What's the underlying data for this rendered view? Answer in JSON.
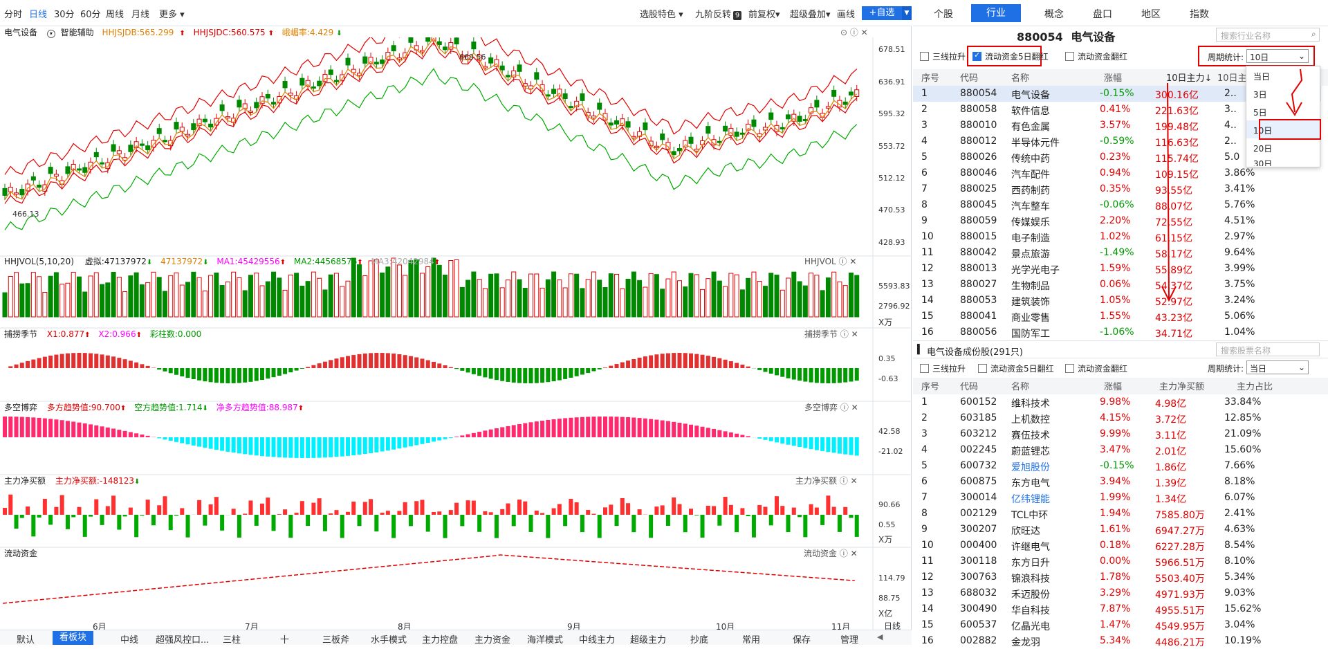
{
  "toolbar": {
    "left_items": [
      "分时",
      "日线",
      "30分",
      "60分",
      "周线",
      "月线",
      "更多 ▾"
    ],
    "right_items": [
      "选股特色 ▾",
      "九阶反转",
      "前复权▾",
      "超级叠加▾",
      "画线"
    ],
    "nine_badge": "9",
    "add_label": "+自选"
  },
  "main_chart": {
    "title": "电气设备",
    "assist": "智能辅助",
    "ind1": "HHJSJDB:565.299",
    "ind2": "HHJSJDC:560.575",
    "ind3": "峨嵋率:4.429",
    "y_labels": [
      "678.51",
      "636.91",
      "595.32",
      "553.72",
      "512.12",
      "470.53",
      "428.93"
    ],
    "high_label": "669.56",
    "low_label": "466.13"
  },
  "vol_panel": {
    "title": "HHJVOL(5,10,20)",
    "v1": "虚拟:47137972",
    "v2": "47137972",
    "ma1": "MA1:45429556",
    "ma2": "MA2:44568576",
    "ma3": "MA3:42042984",
    "right_title": "HHJVOL",
    "y_labels": [
      "5593.83",
      "2796.92"
    ],
    "unit": "X万"
  },
  "season_panel": {
    "title": "捕捞季节",
    "x1": "X1:0.877",
    "x2": "X2:0.966",
    "bars": "彩柱数:0.000",
    "right_title": "捕捞季节",
    "y_labels": [
      "0.35",
      "-0.63"
    ]
  },
  "game_panel": {
    "title": "多空博弈",
    "bull": "多方趋势值:90.700",
    "bear": "空方趋势值:1.714",
    "net": "净多方趋势值:88.987",
    "right_title": "多空博弈",
    "y_labels": [
      "42.58",
      "-21.02"
    ]
  },
  "netbuy_panel": {
    "title": "主力净买额",
    "value": "主力净买额:-148123",
    "right_title": "主力净买额",
    "y_labels": [
      "90.66",
      "0.55"
    ],
    "unit": "X万"
  },
  "flow_panel": {
    "title": "流动资金",
    "right_title": "流动资金",
    "y_labels": [
      "114.79",
      "88.75"
    ],
    "unit": "X亿"
  },
  "x_axis": {
    "months": [
      "6月",
      "7月",
      "8月",
      "9月",
      "10月",
      "11月"
    ],
    "right_label": "日线"
  },
  "bottom_tabs": [
    "默认",
    "看板块",
    "中线",
    "超强风控口...",
    "三柱",
    "十",
    "三板斧",
    "水手模式",
    "主力控盘",
    "主力资金",
    "海洋模式",
    "中线主力",
    "超级主力",
    "抄底",
    "常用",
    "保存",
    "管理"
  ],
  "right_tabs": [
    "个股",
    "行业",
    "概念",
    "盘口",
    "地区",
    "指数"
  ],
  "sector": {
    "code": "880054",
    "name": "电气设备",
    "search_placeholder": "搜索行业名称"
  },
  "filters": {
    "f1": "三线拉升",
    "f2": "流动资金5日翻红",
    "f3": "流动资金翻红",
    "period_label": "周期统计:",
    "period_value": "10日"
  },
  "dropdown": [
    "当日",
    "3日",
    "5日",
    "10日",
    "20日",
    "30日"
  ],
  "table1": {
    "headers": [
      "序号",
      "代码",
      "名称",
      "涨幅",
      "10日主力↓",
      "10日主力"
    ],
    "rows": [
      [
        "1",
        "880054",
        "电气设备",
        "-0.15%",
        "300.16亿",
        "2.."
      ],
      [
        "2",
        "880058",
        "软件信息",
        "0.41%",
        "221.63亿",
        "3.."
      ],
      [
        "3",
        "880010",
        "有色金属",
        "3.57%",
        "199.48亿",
        "4.."
      ],
      [
        "4",
        "880012",
        "半导体元件",
        "-0.59%",
        "116.63亿",
        "2.."
      ],
      [
        "5",
        "880026",
        "传统中药",
        "0.23%",
        "115.74亿",
        "5.0"
      ],
      [
        "6",
        "880046",
        "汽车配件",
        "0.94%",
        "109.15亿",
        "3.86%"
      ],
      [
        "7",
        "880025",
        "西药制药",
        "0.35%",
        "93.55亿",
        "3.41%"
      ],
      [
        "8",
        "880045",
        "汽车整车",
        "-0.06%",
        "88.07亿",
        "5.76%"
      ],
      [
        "9",
        "880059",
        "传媒娱乐",
        "2.20%",
        "72.55亿",
        "4.51%"
      ],
      [
        "10",
        "880015",
        "电子制造",
        "1.02%",
        "61.15亿",
        "2.97%"
      ],
      [
        "11",
        "880042",
        "景点旅游",
        "-1.49%",
        "58.17亿",
        "9.64%"
      ],
      [
        "12",
        "880013",
        "光学光电子",
        "1.59%",
        "55.89亿",
        "3.99%"
      ],
      [
        "13",
        "880027",
        "生物制品",
        "0.06%",
        "54.37亿",
        "3.75%"
      ],
      [
        "14",
        "880053",
        "建筑装饰",
        "1.05%",
        "52.97亿",
        "3.24%"
      ],
      [
        "15",
        "880041",
        "商业零售",
        "1.55%",
        "43.23亿",
        "5.06%"
      ],
      [
        "16",
        "880056",
        "国防军工",
        "-1.06%",
        "34.71亿",
        "1.04%"
      ]
    ]
  },
  "components": {
    "title": "电气设备成份股(291只)",
    "search_placeholder": "搜索股票名称",
    "period_value": "当日"
  },
  "table2": {
    "headers": [
      "序号",
      "代码",
      "名称",
      "涨幅",
      "主力净买额",
      "主力占比"
    ],
    "rows": [
      [
        "1",
        "600152",
        "维科技术",
        "9.98%",
        "4.98亿",
        "33.84%"
      ],
      [
        "2",
        "603185",
        "上机数控",
        "4.15%",
        "3.72亿",
        "12.85%"
      ],
      [
        "3",
        "603212",
        "赛伍技术",
        "9.99%",
        "3.11亿",
        "21.09%"
      ],
      [
        "4",
        "002245",
        "蔚蓝锂芯",
        "3.47%",
        "2.01亿",
        "15.60%"
      ],
      [
        "5",
        "600732",
        "爱旭股份",
        "-0.15%",
        "1.86亿",
        "7.66%"
      ],
      [
        "6",
        "600875",
        "东方电气",
        "3.94%",
        "1.39亿",
        "8.18%"
      ],
      [
        "7",
        "300014",
        "亿纬锂能",
        "1.99%",
        "1.34亿",
        "6.07%"
      ],
      [
        "8",
        "002129",
        "TCL中环",
        "1.94%",
        "7585.80万",
        "2.41%"
      ],
      [
        "9",
        "300207",
        "欣旺达",
        "1.61%",
        "6947.27万",
        "4.63%"
      ],
      [
        "10",
        "000400",
        "许继电气",
        "0.18%",
        "6227.28万",
        "8.54%"
      ],
      [
        "11",
        "300118",
        "东方日升",
        "0.00%",
        "5966.51万",
        "8.10%"
      ],
      [
        "12",
        "300763",
        "锦浪科技",
        "1.78%",
        "5503.40万",
        "5.34%"
      ],
      [
        "13",
        "688032",
        "禾迈股份",
        "3.29%",
        "4971.93万",
        "9.03%"
      ],
      [
        "14",
        "300490",
        "华自科技",
        "7.87%",
        "4955.51万",
        "15.62%"
      ],
      [
        "15",
        "600537",
        "亿晶光电",
        "1.47%",
        "4549.95万",
        "3.04%"
      ],
      [
        "16",
        "002882",
        "金龙羽",
        "5.34%",
        "4486.21万",
        "10.19%"
      ]
    ]
  },
  "colors": {
    "up": "#e00000",
    "down": "#009900",
    "accent": "#1f6fe5",
    "cyan": "#00f0ff",
    "magenta": "#ff00ff"
  }
}
